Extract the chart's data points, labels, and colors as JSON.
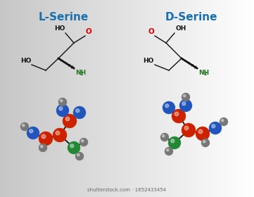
{
  "title_L": "L-Serine",
  "title_D": "D-Serine",
  "title_color": "#1a6faf",
  "title_fontsize": 11,
  "watermark": "shutterstock.com · 1652433454",
  "formula_black": "#111111",
  "formula_red": "#dd0000",
  "formula_green": "#227722",
  "C_color": "#cc2200",
  "O_color": "#2255bb",
  "N_color": "#228833",
  "H_color": "#777777",
  "bond_color": "#111111"
}
